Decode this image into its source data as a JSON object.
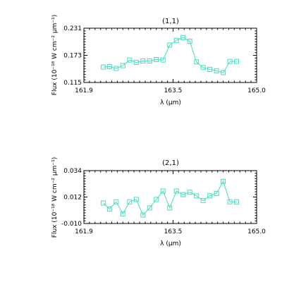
{
  "chart_data": [
    {
      "type": "line",
      "title": "(1,1)",
      "xlabel": "λ (μm)",
      "ylabel": "Flux (10⁻¹⁸ W cm⁻² μm⁻¹)",
      "xlim": [
        161.9,
        165.0
      ],
      "ylim": [
        0.115,
        0.231
      ],
      "xticks": [
        "161.9",
        "163.5",
        "165.0"
      ],
      "yticks": [
        "0.115",
        "0.173",
        "0.231"
      ],
      "grid": false,
      "marker": "square",
      "color": "#40e0c0",
      "x": [
        162.25,
        162.36,
        162.48,
        162.6,
        162.72,
        162.84,
        162.96,
        163.08,
        163.2,
        163.32,
        163.44,
        163.56,
        163.68,
        163.8,
        163.92,
        164.04,
        164.16,
        164.28,
        164.4,
        164.52,
        164.64
      ],
      "y": [
        0.148,
        0.149,
        0.145,
        0.151,
        0.163,
        0.158,
        0.161,
        0.161,
        0.164,
        0.163,
        0.195,
        0.205,
        0.211,
        0.203,
        0.159,
        0.147,
        0.143,
        0.14,
        0.136,
        0.16,
        0.16
      ]
    },
    {
      "type": "line",
      "title": "(2,1)",
      "xlabel": "λ (μm)",
      "ylabel": "Flux (10⁻¹⁸ W cm⁻² μm⁻¹)",
      "xlim": [
        161.9,
        165.0
      ],
      "ylim": [
        -0.01,
        0.034
      ],
      "xticks": [
        "161.9",
        "163.5",
        "165.0"
      ],
      "yticks": [
        "-0.010",
        "0.012",
        "0.034"
      ],
      "grid": false,
      "marker": "square",
      "color": "#40e0c0",
      "x": [
        162.25,
        162.36,
        162.48,
        162.6,
        162.72,
        162.84,
        162.96,
        163.08,
        163.2,
        163.32,
        163.44,
        163.56,
        163.68,
        163.8,
        163.92,
        164.04,
        164.16,
        164.28,
        164.4,
        164.52,
        164.64
      ],
      "y": [
        0.007,
        0.002,
        0.008,
        -0.002,
        0.008,
        0.01,
        -0.003,
        0.003,
        0.01,
        0.017,
        0.003,
        0.017,
        0.014,
        0.016,
        0.013,
        0.009,
        0.013,
        0.015,
        0.025,
        0.008,
        0.008
      ]
    }
  ]
}
